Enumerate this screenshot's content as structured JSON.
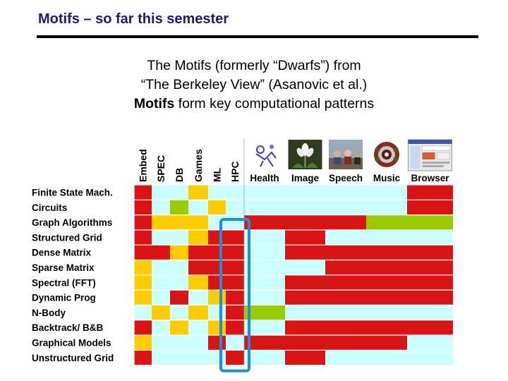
{
  "title": "Motifs – so far this semester",
  "subtitle": {
    "line1": "The Motifs (formerly “Dwarfs”) from",
    "line2": "“The Berkeley View” (Asanovic et al.)",
    "line3_bold": "Motifs",
    "line3_rest": " form key computational patterns"
  },
  "colors": {
    "red": "#d81414",
    "yellow": "#ffcc00",
    "green": "#99cc00",
    "light": "#ccffff",
    "highlight": "#1e90d8"
  },
  "chart_data": {
    "type": "heatmap",
    "title": "",
    "columns": [
      "Embed",
      "SPEC",
      "DB",
      "Games",
      "ML",
      "HPC",
      "Health",
      "Image",
      "Speech",
      "Music",
      "Browser"
    ],
    "app_icons": [
      "health-icon",
      "image-icon",
      "speech-icon",
      "music-icon",
      "browser-icon"
    ],
    "rows": [
      "Finite State Mach.",
      "Circuits",
      "Graph Algorithms",
      "Structured Grid",
      "Dense Matrix",
      "Sparse Matrix",
      "Spectral (FFT)",
      "Dynamic Prog",
      "N-Body",
      "Backtrack/ B&B",
      "Graphical Models",
      "Unstructured Grid"
    ],
    "legend_scale": {
      "r": "red",
      "y": "yellow",
      "g": "green",
      "b": "light"
    },
    "cells": [
      [
        "r",
        "b",
        "b",
        "y",
        "b",
        "b",
        "b",
        "b",
        "b",
        "b",
        "r"
      ],
      [
        "r",
        "b",
        "g",
        "b",
        "y",
        "b",
        "b",
        "b",
        "b",
        "b",
        "r"
      ],
      [
        "r",
        "y",
        "y",
        "y",
        "b",
        "b",
        "r",
        "r",
        "r",
        "g",
        "g"
      ],
      [
        "r",
        "b",
        "b",
        "y",
        "r",
        "r",
        "b",
        "r",
        "b",
        "b",
        "b"
      ],
      [
        "r",
        "r",
        "y",
        "r",
        "r",
        "r",
        "b",
        "r",
        "r",
        "r",
        "r"
      ],
      [
        "y",
        "b",
        "b",
        "r",
        "r",
        "r",
        "b",
        "b",
        "r",
        "r",
        "r"
      ],
      [
        "y",
        "b",
        "b",
        "y",
        "r",
        "r",
        "b",
        "r",
        "r",
        "r",
        "r"
      ],
      [
        "y",
        "b",
        "r",
        "b",
        "y",
        "r",
        "b",
        "r",
        "r",
        "r",
        "r"
      ],
      [
        "b",
        "y",
        "b",
        "y",
        "b",
        "r",
        "g",
        "b",
        "b",
        "b",
        "b"
      ],
      [
        "r",
        "b",
        "y",
        "b",
        "y",
        "r",
        "b",
        "r",
        "r",
        "r",
        "r"
      ],
      [
        "y",
        "b",
        "b",
        "b",
        "r",
        "b",
        "r",
        "r",
        "r",
        "r",
        "b"
      ],
      [
        "r",
        "b",
        "b",
        "b",
        "b",
        "r",
        "b",
        "r",
        "b",
        "b",
        "b"
      ]
    ],
    "highlighted_column": "HPC"
  }
}
